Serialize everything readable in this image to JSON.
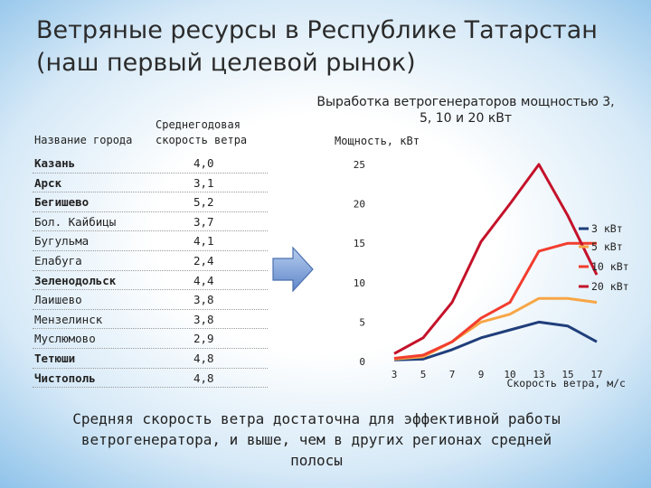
{
  "slide": {
    "title": "Ветряные ресурсы в Республике Татарстан (наш первый целевой рынок)",
    "caption": "Средняя скорость ветра достаточна для эффективной работы ветрогенератора, и выше, чем в других регионах средней полосы"
  },
  "table": {
    "header_city": "Название города",
    "header_wind": "Среднегодовая скорость ветра",
    "rows": [
      {
        "city": "Казань",
        "value": "4,0",
        "bold": true
      },
      {
        "city": "Арск",
        "value": "3,1",
        "bold": true
      },
      {
        "city": "Бегишево",
        "value": "5,2",
        "bold": true
      },
      {
        "city": "Бол. Кайбицы",
        "value": "3,7",
        "bold": false
      },
      {
        "city": "Бугульма",
        "value": "4,1",
        "bold": false
      },
      {
        "city": "Елабуга",
        "value": "2,4",
        "bold": false
      },
      {
        "city": "Зеленодольск",
        "value": "4,4",
        "bold": true
      },
      {
        "city": "Лаишево",
        "value": "3,8",
        "bold": false
      },
      {
        "city": "Мензелинск",
        "value": "3,8",
        "bold": false
      },
      {
        "city": "Муслюмово",
        "value": "2,9",
        "bold": false
      },
      {
        "city": "Тетюши",
        "value": "4,8",
        "bold": true
      },
      {
        "city": "Чистополь",
        "value": "4,8",
        "bold": true
      }
    ]
  },
  "chart_data": {
    "type": "line",
    "title": "Выработка ветрогенераторов мощностью 3, 5, 10 и 20 кВт",
    "ylabel": "Мощность, кВт",
    "xlabel": "Скорость ветра, м/с",
    "x": [
      3,
      5,
      7,
      9,
      10,
      13,
      15,
      17
    ],
    "ylim": [
      0,
      25
    ],
    "yticks": [
      0,
      5,
      10,
      15,
      20,
      25
    ],
    "grid": false,
    "legend_position": "right",
    "series": [
      {
        "name": "3 кВт",
        "color": "#1f3e7a",
        "values": [
          0.2,
          0.3,
          1.5,
          3.0,
          4.0,
          5.0,
          4.5,
          2.5
        ]
      },
      {
        "name": "5 кВт",
        "color": "#f7a646",
        "values": [
          0.3,
          0.6,
          2.5,
          5.0,
          6.0,
          8.0,
          8.0,
          7.5
        ]
      },
      {
        "name": "10 кВт",
        "color": "#f23d2e",
        "values": [
          0.4,
          0.8,
          2.5,
          5.5,
          7.5,
          14.0,
          15.0,
          15.0
        ]
      },
      {
        "name": "20 кВт",
        "color": "#c4122a",
        "values": [
          1.0,
          3.0,
          7.5,
          15.2,
          20.0,
          25.0,
          18.5,
          11.0
        ]
      }
    ]
  }
}
